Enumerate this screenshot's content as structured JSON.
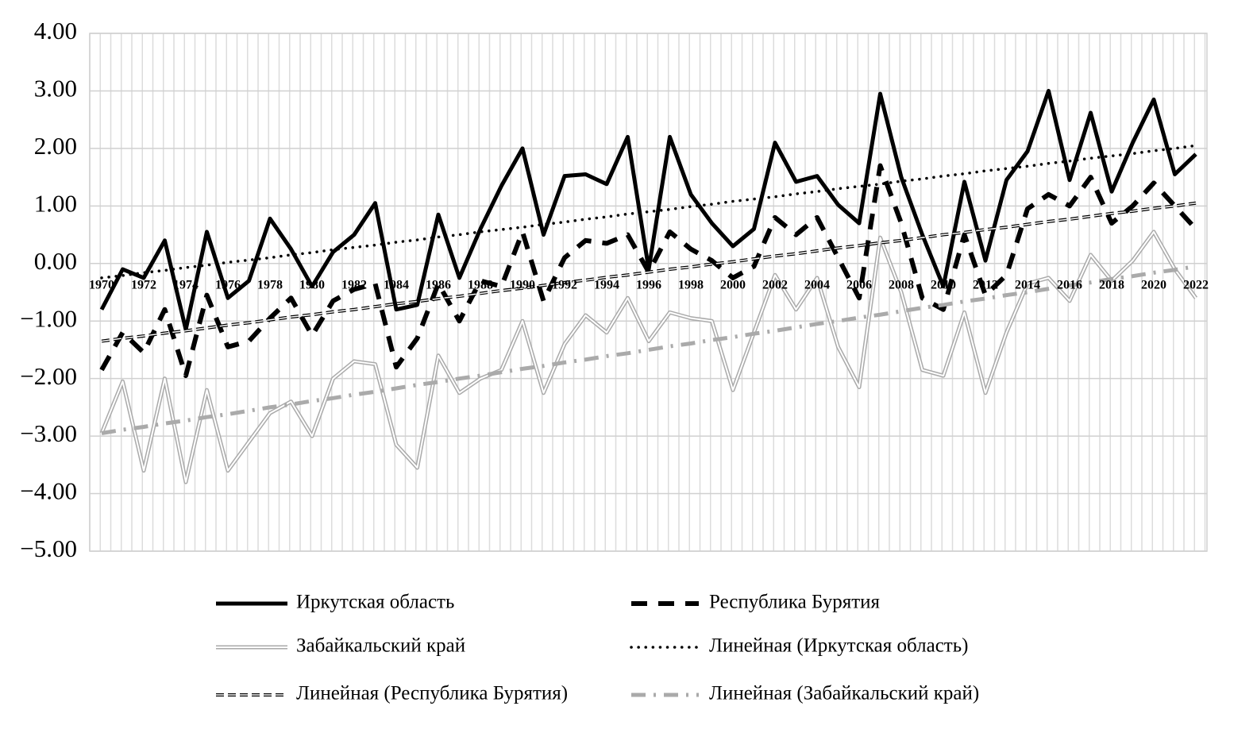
{
  "chart_data": {
    "type": "line",
    "categories": [
      "1970",
      null,
      "1972",
      null,
      "1974",
      null,
      "1976",
      null,
      "1978",
      null,
      "1980",
      null,
      "1982",
      null,
      "1984",
      null,
      "1986",
      null,
      "1988",
      null,
      "1990",
      null,
      "1992",
      null,
      "1994",
      null,
      "1996",
      null,
      "1998",
      null,
      "2000",
      null,
      "2002",
      null,
      "2004",
      null,
      "2006",
      null,
      "2008",
      null,
      "2010",
      null,
      "2012",
      null,
      "2014",
      null,
      "2016",
      null,
      "2018",
      null,
      "2020",
      null,
      "2022"
    ],
    "ylim": [
      -5,
      4
    ],
    "yticks": [
      {
        "value": 4,
        "label": "4.00"
      },
      {
        "value": 3,
        "label": "3.00"
      },
      {
        "value": 2,
        "label": "2.00"
      },
      {
        "value": 1,
        "label": "1.00"
      },
      {
        "value": 0,
        "label": "0.00"
      },
      {
        "value": -1,
        "label": "−1.00"
      },
      {
        "value": -2,
        "label": "−2.00"
      },
      {
        "value": -3,
        "label": "−3.00"
      },
      {
        "value": -4,
        "label": "−4.00"
      },
      {
        "value": -5,
        "label": "−5.00"
      }
    ],
    "grid": true,
    "legend": "bottom",
    "series": [
      {
        "name": "Иркутская область",
        "color": "#000000",
        "style": "solid",
        "values": [
          -0.8,
          -0.1,
          -0.25,
          0.4,
          -1.15,
          0.55,
          -0.6,
          -0.3,
          0.78,
          0.25,
          -0.4,
          0.2,
          0.5,
          1.05,
          -0.8,
          -0.72,
          0.85,
          -0.25,
          0.6,
          1.35,
          2.0,
          0.5,
          1.52,
          1.55,
          1.38,
          2.2,
          -0.1,
          2.2,
          1.2,
          0.7,
          0.3,
          0.6,
          2.1,
          1.42,
          1.52,
          1.02,
          0.7,
          2.95,
          1.5,
          0.5,
          -0.4,
          1.42,
          0.05,
          1.45,
          1.95,
          3.0,
          1.45,
          2.62,
          1.25,
          2.1,
          2.85,
          1.55,
          1.9
        ]
      },
      {
        "name": "Республика Бурятия",
        "color": "#000000",
        "style": "dashed",
        "values": [
          -1.85,
          -1.2,
          -1.55,
          -0.8,
          -1.95,
          -0.55,
          -1.45,
          -1.35,
          -0.95,
          -0.6,
          -1.25,
          -0.65,
          -0.45,
          -0.35,
          -1.8,
          -1.3,
          -0.35,
          -1.0,
          -0.3,
          -0.4,
          0.55,
          -0.65,
          0.1,
          0.4,
          0.35,
          0.5,
          -0.15,
          0.55,
          0.25,
          0.05,
          -0.25,
          -0.05,
          0.8,
          0.5,
          0.8,
          0.1,
          -0.6,
          1.7,
          0.7,
          -0.6,
          -0.8,
          0.5,
          -0.55,
          -0.2,
          0.95,
          1.2,
          1.0,
          1.5,
          0.7,
          1.0,
          1.4,
          1.0,
          0.6
        ]
      },
      {
        "name": "Забайкальский край",
        "color": "#aaaaaa",
        "style": "double",
        "values": [
          -2.95,
          -2.05,
          -3.6,
          -2.0,
          -3.8,
          -2.2,
          -3.6,
          -3.1,
          -2.6,
          -2.4,
          -3.0,
          -2.0,
          -1.7,
          -1.75,
          -3.15,
          -3.55,
          -1.6,
          -2.25,
          -2.0,
          -1.85,
          -1.0,
          -2.25,
          -1.4,
          -0.9,
          -1.2,
          -0.6,
          -1.35,
          -0.85,
          -0.95,
          -1.0,
          -2.2,
          -1.2,
          -0.2,
          -0.8,
          -0.25,
          -1.45,
          -2.15,
          0.45,
          -0.5,
          -1.85,
          -1.95,
          -0.85,
          -2.25,
          -1.2,
          -0.35,
          -0.25,
          -0.65,
          0.15,
          -0.3,
          0.05,
          0.55,
          -0.1,
          -0.6
        ]
      },
      {
        "name": "Линейная (Иркутская область)",
        "color": "#000000",
        "style": "dotted",
        "values": [
          -0.25,
          -0.21,
          -0.16,
          -0.12,
          -0.07,
          -0.03,
          0.02,
          0.06,
          0.1,
          0.15,
          0.19,
          0.24,
          0.28,
          0.32,
          0.37,
          0.41,
          0.46,
          0.5,
          0.55,
          0.59,
          0.63,
          0.68,
          0.72,
          0.77,
          0.81,
          0.86,
          0.9,
          0.94,
          0.99,
          1.03,
          1.08,
          1.12,
          1.16,
          1.21,
          1.25,
          1.3,
          1.34,
          1.38,
          1.43,
          1.47,
          1.52,
          1.56,
          1.61,
          1.65,
          1.69,
          1.74,
          1.78,
          1.83,
          1.87,
          1.91,
          1.96,
          2.0,
          2.05
        ]
      },
      {
        "name": "Линейная (Республика Бурятия)",
        "color": "#000000",
        "style": "double-dashed",
        "values": [
          -1.35,
          -1.3,
          -1.26,
          -1.21,
          -1.17,
          -1.12,
          -1.07,
          -1.03,
          -0.98,
          -0.93,
          -0.89,
          -0.84,
          -0.8,
          -0.75,
          -0.7,
          -0.66,
          -0.61,
          -0.57,
          -0.52,
          -0.47,
          -0.43,
          -0.38,
          -0.33,
          -0.29,
          -0.24,
          -0.2,
          -0.15,
          -0.1,
          -0.06,
          -0.01,
          0.03,
          0.08,
          0.13,
          0.17,
          0.22,
          0.27,
          0.31,
          0.36,
          0.4,
          0.45,
          0.5,
          0.54,
          0.59,
          0.63,
          0.68,
          0.73,
          0.77,
          0.82,
          0.87,
          0.91,
          0.96,
          1.0,
          1.05
        ]
      },
      {
        "name": "Линейная (Забайкальский край)",
        "color": "#aaaaaa",
        "style": "dash-dot",
        "values": [
          -2.95,
          -2.89,
          -2.84,
          -2.78,
          -2.73,
          -2.67,
          -2.62,
          -2.56,
          -2.5,
          -2.45,
          -2.39,
          -2.34,
          -2.28,
          -2.23,
          -2.17,
          -2.11,
          -2.06,
          -2.0,
          -1.95,
          -1.89,
          -1.83,
          -1.78,
          -1.72,
          -1.67,
          -1.61,
          -1.56,
          -1.5,
          -1.44,
          -1.39,
          -1.33,
          -1.28,
          -1.22,
          -1.17,
          -1.11,
          -1.05,
          -1.0,
          -0.94,
          -0.89,
          -0.83,
          -0.77,
          -0.72,
          -0.66,
          -0.61,
          -0.55,
          -0.5,
          -0.44,
          -0.38,
          -0.33,
          -0.27,
          -0.22,
          -0.16,
          -0.11,
          -0.05
        ]
      }
    ]
  }
}
